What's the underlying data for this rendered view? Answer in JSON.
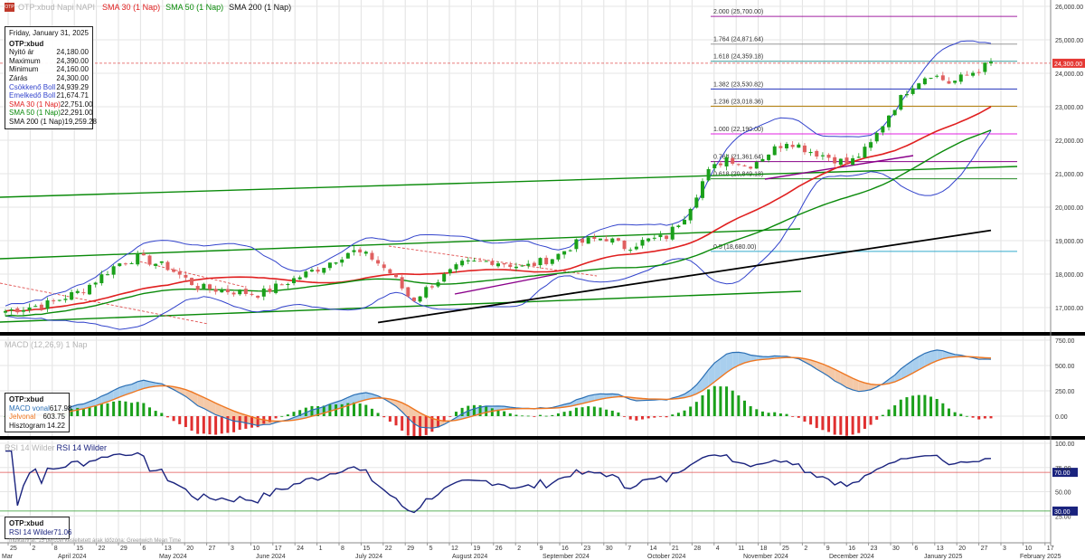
{
  "header": {
    "symbol_ghost": "OTP:xbud  Napi  NAPI",
    "sma30": "SMA 30 (1 Nap)",
    "sma50": "SMA 50 (1 Nap)",
    "sma200": "SMA 200 (1 Nap)",
    "macd_ghost": "MACD (12,26,9)  1 Nap",
    "rsi_ghost": "RSI 14 Wilder",
    "rsi_title": "RSI 14 Wilder"
  },
  "colors": {
    "sma30": "#e02020",
    "sma50": "#0a8a0a",
    "sma200": "#000000",
    "boll": "#3344cc",
    "up": "#1aa01a",
    "down": "#e06060",
    "macd": "#2a6fb5",
    "signal": "#ee7722",
    "rsi": "#1a237e"
  },
  "info": {
    "date": "Friday, January 31, 2025",
    "symbol": "OTP:xbud",
    "rows": [
      {
        "label": "Nyitó ár",
        "value": "24,180.00",
        "color": "#111111"
      },
      {
        "label": "Maximum",
        "value": "24,390.00",
        "color": "#111111"
      },
      {
        "label": "Minimum",
        "value": "24,160.00",
        "color": "#111111"
      },
      {
        "label": "Zárás",
        "value": "24,300.00",
        "color": "#111111"
      },
      {
        "label": "Csökkenő Boll",
        "value": "24,939.29",
        "color": "#3344cc"
      },
      {
        "label": "Emelkedő Boll",
        "value": "21,674.71",
        "color": "#3344cc"
      },
      {
        "label": "SMA 30 (1 Nap)",
        "value": "22,751.00",
        "color": "#e02020"
      },
      {
        "label": "SMA 50 (1 Nap)",
        "value": "22,291.00",
        "color": "#0a8a0a"
      },
      {
        "label": "SMA 200 (1 Nap)",
        "value": "19,259.28",
        "color": "#111111"
      }
    ]
  },
  "macd_box": {
    "symbol": "OTP:xbud",
    "rows": [
      {
        "label": "MACD vonal",
        "value": "617.98",
        "color": "#2a6fb5"
      },
      {
        "label": "Jelvonal",
        "value": "603.75",
        "color": "#ee7722"
      },
      {
        "label": "Hisztogram",
        "value": "14.22",
        "color": "#111111"
      }
    ]
  },
  "rsi_box": {
    "symbol": "OTP:xbud",
    "row": {
      "label": "RSI 14 Wilder",
      "value": "71.06"
    }
  },
  "footer_note": "Indikatív ár. 15 perccel késleltetett árak   Időzóna: Greenwich Mean Time",
  "price_axis": [
    "26,000.00",
    "25,000.00",
    "24,000.00",
    "23,000.00",
    "22,000.00",
    "21,000.00",
    "20,000.00",
    "19,000.00",
    "18,000.00",
    "17,000.00"
  ],
  "last_price": "24,300.00",
  "fib_levels": [
    {
      "label": "2.000 (25,700.00)",
      "value": 25700,
      "color": "#a020a0"
    },
    {
      "label": "1.764 (24,871.64)",
      "value": 24871.64,
      "color": "#999999"
    },
    {
      "label": "1.618 (24,359.18)",
      "value": 24359.18,
      "color": "#3a9a9a"
    },
    {
      "label": "1.382 (23,530.82)",
      "value": 23530.82,
      "color": "#2233bb"
    },
    {
      "label": "1.236 (23,018.36)",
      "value": 23018.36,
      "color": "#b07a00"
    },
    {
      "label": "1.000 (22,190.00)",
      "value": 22190,
      "color": "#e020e0"
    },
    {
      "label": "0.764 (21,361.64)",
      "value": 21361.64,
      "color": "#880088"
    },
    {
      "label": "0.618 (20,849.18)",
      "value": 20849.18,
      "color": "#228822"
    },
    {
      "label": "0.5 (18,680.00)",
      "value": 18680,
      "color": "#33aacc"
    }
  ],
  "macd_axis": [
    "750.00",
    "500.00",
    "250.00",
    "0.00"
  ],
  "rsi_axis": [
    "100.00",
    "75.00",
    "50.00",
    "25.00"
  ],
  "rsi_badges": {
    "upper": "70.00",
    "lower": "30.00"
  },
  "date_ticks": [
    "25",
    "2",
    "8",
    "15",
    "22",
    "29",
    "6",
    "13",
    "20",
    "27",
    "3",
    "10",
    "17",
    "24",
    "1",
    "8",
    "15",
    "22",
    "29",
    "5",
    "12",
    "19",
    "26",
    "2",
    "9",
    "16",
    "23",
    "30",
    "7",
    "14",
    "21",
    "28",
    "4",
    "11",
    "18",
    "25",
    "2",
    "9",
    "16",
    "23",
    "30",
    "6",
    "13",
    "20",
    "27",
    "3",
    "10",
    "17"
  ],
  "month_labels": [
    "Mar",
    "April 2024",
    "May 2024",
    "June 2024",
    "July 2024",
    "August 2024",
    "September 2024",
    "October 2024",
    "November 2024",
    "December 2024",
    "January 2025",
    "February 2025"
  ]
}
